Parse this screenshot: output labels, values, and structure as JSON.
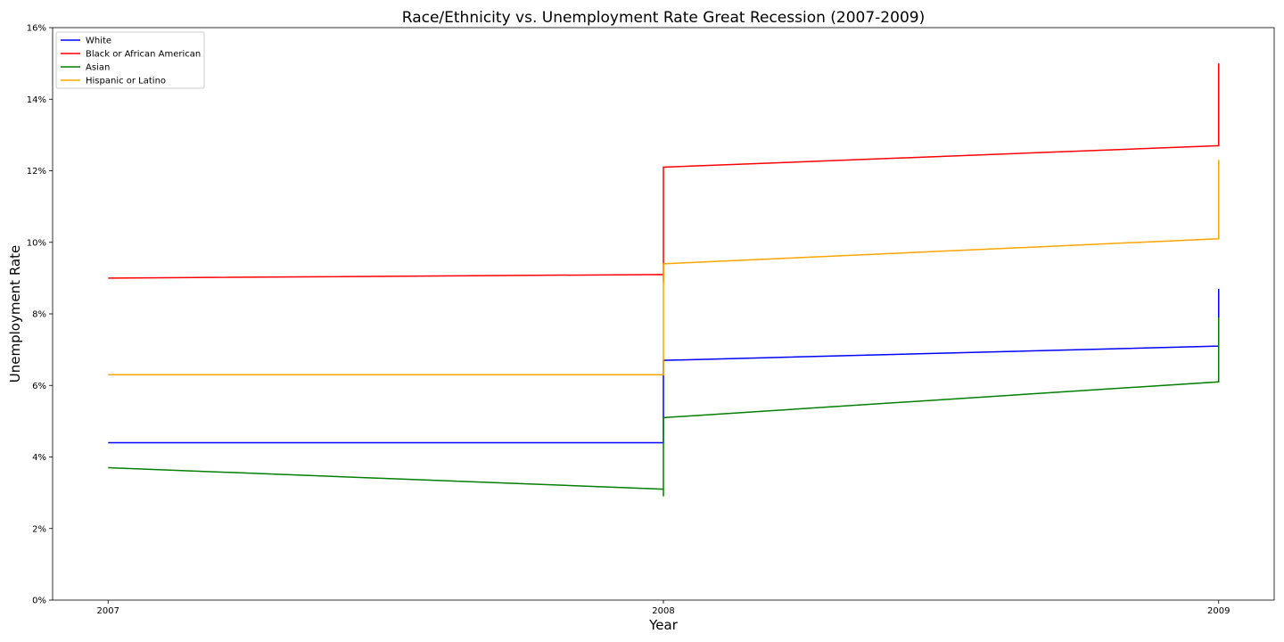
{
  "chart_data": {
    "type": "line",
    "title": "Race/Ethnicity vs. Unemployment Rate Great Recession (2007-2009)",
    "xlabel": "Year",
    "ylabel": "Unemployment Rate",
    "x_ticks": [
      "2007",
      "2008",
      "2009"
    ],
    "y_ticks": [
      "0%",
      "2%",
      "4%",
      "6%",
      "8%",
      "10%",
      "12%",
      "14%",
      "16%"
    ],
    "xlim": [
      2006.9,
      2009.1
    ],
    "ylim": [
      0,
      16
    ],
    "grid": false,
    "legend_position": "top-left",
    "series": [
      {
        "name": "White",
        "color": "#0000ff",
        "points": [
          [
            2007,
            4.4
          ],
          [
            2008,
            4.4
          ],
          [
            2008,
            5.0
          ],
          [
            2008,
            6.2
          ],
          [
            2008,
            5.6
          ],
          [
            2008,
            6.7
          ],
          [
            2009,
            7.1
          ],
          [
            2009,
            7.8
          ],
          [
            2009,
            8.7
          ],
          [
            2009,
            8.2
          ]
        ]
      },
      {
        "name": "Black or African American",
        "color": "#ff0000",
        "points": [
          [
            2007,
            9.0
          ],
          [
            2008,
            9.1
          ],
          [
            2008,
            8.9
          ],
          [
            2008,
            9.6
          ],
          [
            2008,
            9.2
          ],
          [
            2008,
            12.1
          ],
          [
            2009,
            12.7
          ],
          [
            2009,
            13.8
          ],
          [
            2009,
            15.0
          ],
          [
            2009,
            14.7
          ]
        ]
      },
      {
        "name": "Asian",
        "color": "#008000",
        "points": [
          [
            2007,
            3.7
          ],
          [
            2008,
            3.1
          ],
          [
            2008,
            2.9
          ],
          [
            2008,
            3.6
          ],
          [
            2008,
            4.3
          ],
          [
            2008,
            5.1
          ],
          [
            2009,
            6.1
          ],
          [
            2009,
            6.5
          ],
          [
            2009,
            7.9
          ],
          [
            2009,
            7.4
          ]
        ]
      },
      {
        "name": "Hispanic or Latino",
        "color": "#ffa500",
        "points": [
          [
            2007,
            6.3
          ],
          [
            2008,
            6.3
          ],
          [
            2008,
            7.6
          ],
          [
            2008,
            8.4
          ],
          [
            2008,
            8.9
          ],
          [
            2008,
            9.4
          ],
          [
            2009,
            10.1
          ],
          [
            2009,
            11.4
          ],
          [
            2009,
            12.3
          ],
          [
            2009,
            11.7
          ]
        ]
      }
    ]
  }
}
